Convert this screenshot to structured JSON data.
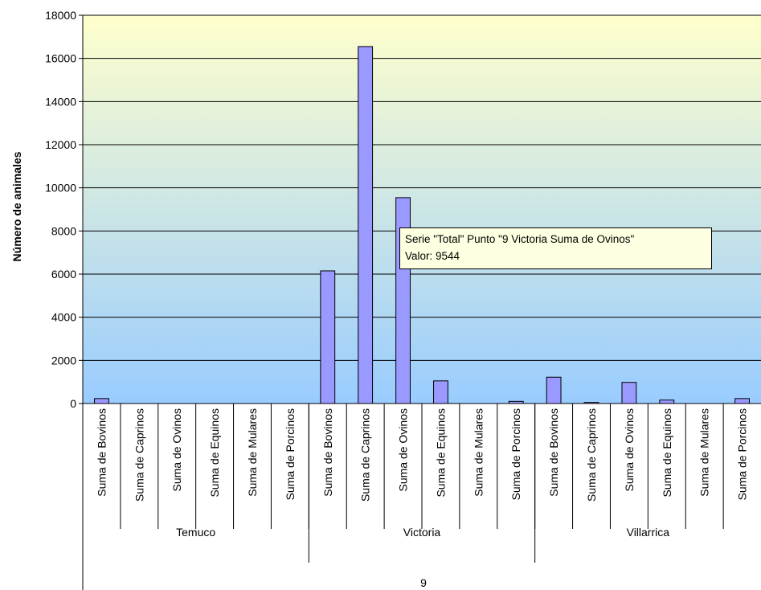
{
  "chart_data": {
    "type": "bar",
    "ylabel": "Número de animales",
    "ylim": [
      0,
      18000
    ],
    "yticks": [
      0,
      2000,
      4000,
      6000,
      8000,
      10000,
      12000,
      14000,
      16000,
      18000
    ],
    "groups": [
      {
        "label": "Temuco",
        "categories": [
          "Suma de Bovinos",
          "Suma de Caprinos",
          "Suma de Ovinos",
          "Suma de Equinos",
          "Suma de Mulares",
          "Suma de Porcinos"
        ],
        "values": [
          230,
          0,
          0,
          0,
          0,
          0
        ]
      },
      {
        "label": "Victoria",
        "categories": [
          "Suma de Bovinos",
          "Suma de Caprinos",
          "Suma de Ovinos",
          "Suma de Equinos",
          "Suma de Mulares",
          "Suma de Porcinos"
        ],
        "values": [
          6150,
          16550,
          9544,
          1050,
          0,
          100
        ]
      },
      {
        "label": "Villarrica",
        "categories": [
          "Suma de Bovinos",
          "Suma de Caprinos",
          "Suma de Ovinos",
          "Suma de Equinos",
          "Suma de Mulares",
          "Suma de Porcinos"
        ],
        "values": [
          1220,
          50,
          980,
          160,
          0,
          230
        ]
      }
    ],
    "outer_label": "9",
    "grid": true,
    "bar_color": "#9999ff",
    "bar_stroke": "#000000",
    "background_gradient": [
      "#ffffcc",
      "#99ccff"
    ]
  },
  "tooltip": {
    "line1": "Serie \"Total\" Punto \"9 Victoria Suma de Ovinos\"",
    "line2": "Valor: 9544"
  }
}
